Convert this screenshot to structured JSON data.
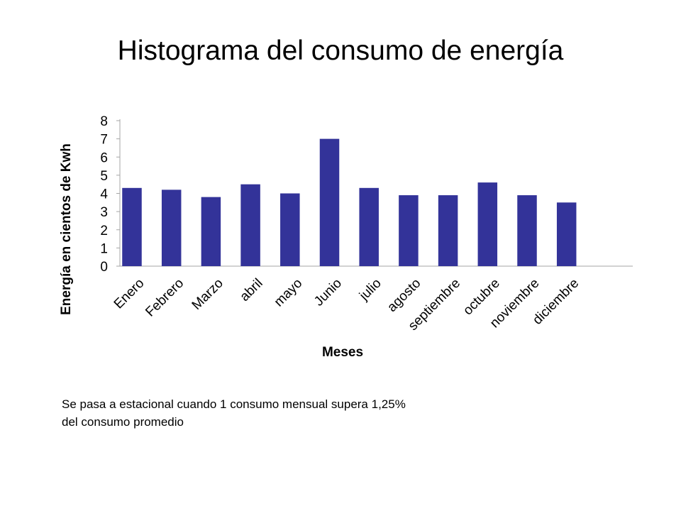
{
  "slide": {
    "title": "Histograma del consumo de energía",
    "note_lines": [
      "Se pasa a estacional  cuando 1 consumo mensual supera 1,25%",
      "del consumo promedio"
    ]
  },
  "chart_data": {
    "type": "bar",
    "title": "",
    "xlabel": "Meses",
    "ylabel": "Energía en cientos de Kwh",
    "categories": [
      "Enero",
      "Febrero",
      "Marzo",
      "abril",
      "mayo",
      "Junio",
      "julio",
      "agosto",
      "septiembre",
      "octubre",
      "noviembre",
      "diciembre"
    ],
    "values": [
      4.3,
      4.2,
      3.8,
      4.5,
      4.0,
      7.0,
      4.3,
      3.9,
      3.9,
      4.6,
      3.9,
      3.5
    ],
    "ylim": [
      0,
      8
    ],
    "yticks": [
      0,
      1,
      2,
      3,
      4,
      5,
      6,
      7,
      8
    ],
    "grid": false,
    "legend": "none",
    "bar_color": "#333399"
  }
}
